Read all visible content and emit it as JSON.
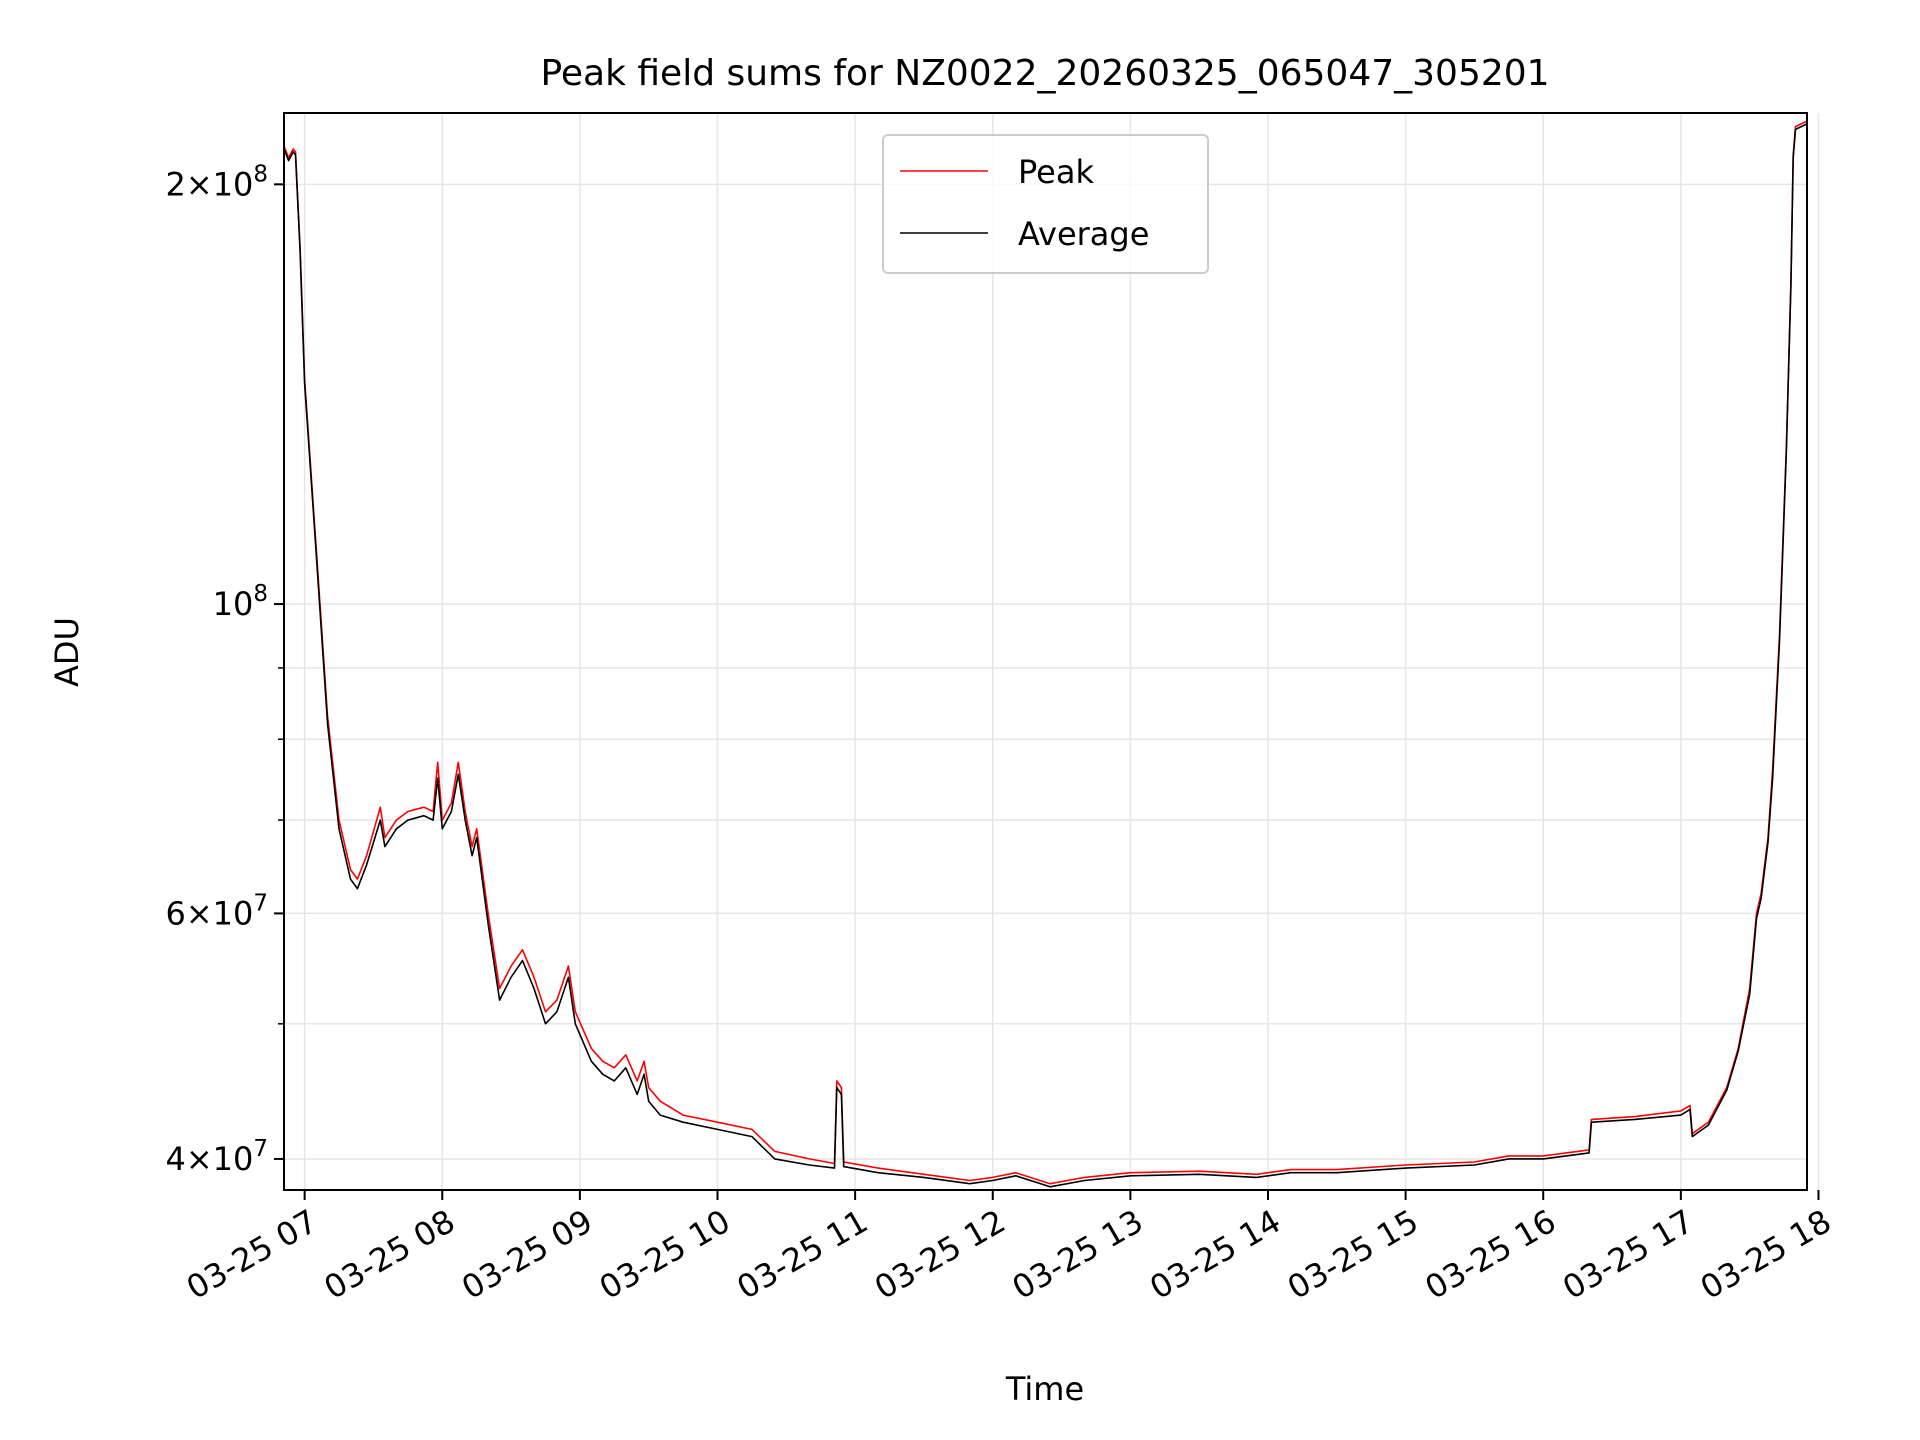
{
  "chart_data": {
    "type": "line",
    "title": "Peak field sums for NZ0022_20260325_065047_305201",
    "xlabel": "Time",
    "ylabel": "ADU",
    "yscale": "log",
    "ylim": [
      38000000,
      225000000
    ],
    "xlim": [
      "03-25 06:51",
      "03-25 17:55"
    ],
    "grid": true,
    "legend_position": "top-center",
    "x_ticks": [
      "03-25 07",
      "03-25 08",
      "03-25 09",
      "03-25 10",
      "03-25 11",
      "03-25 12",
      "03-25 13",
      "03-25 14",
      "03-25 15",
      "03-25 16",
      "03-25 17",
      "03-25 18"
    ],
    "y_ticks": [
      {
        "value": 40000000,
        "mant": "4",
        "exp": "7"
      },
      {
        "value": 60000000,
        "mant": "6",
        "exp": "7"
      },
      {
        "value": 100000000,
        "mant": "",
        "exp": "8"
      },
      {
        "value": 200000000,
        "mant": "2",
        "exp": "8"
      }
    ],
    "series": [
      {
        "name": "Peak",
        "color": "#ff0000",
        "points": [
          [
            "03-25 06:51",
            213000000
          ],
          [
            "03-25 06:53",
            209000000
          ],
          [
            "03-25 06:55",
            212000000
          ],
          [
            "03-25 06:56",
            211000000
          ],
          [
            "03-25 06:58",
            180000000
          ],
          [
            "03-25 07:00",
            145000000
          ],
          [
            "03-25 07:05",
            110000000
          ],
          [
            "03-25 07:10",
            83000000
          ],
          [
            "03-25 07:15",
            70000000
          ],
          [
            "03-25 07:20",
            64500000
          ],
          [
            "03-25 07:23",
            63500000
          ],
          [
            "03-25 07:27",
            66000000
          ],
          [
            "03-25 07:33",
            71500000
          ],
          [
            "03-25 07:35",
            68000000
          ],
          [
            "03-25 07:40",
            70000000
          ],
          [
            "03-25 07:45",
            71000000
          ],
          [
            "03-25 07:52",
            71500000
          ],
          [
            "03-25 07:56",
            71000000
          ],
          [
            "03-25 07:58",
            77000000
          ],
          [
            "03-25 08:00",
            70000000
          ],
          [
            "03-25 08:04",
            72000000
          ],
          [
            "03-25 08:07",
            77000000
          ],
          [
            "03-25 08:10",
            71000000
          ],
          [
            "03-25 08:13",
            67000000
          ],
          [
            "03-25 08:15",
            69000000
          ],
          [
            "03-25 08:20",
            60000000
          ],
          [
            "03-25 08:25",
            53000000
          ],
          [
            "03-25 08:30",
            55000000
          ],
          [
            "03-25 08:35",
            56500000
          ],
          [
            "03-25 08:40",
            54000000
          ],
          [
            "03-25 08:45",
            51000000
          ],
          [
            "03-25 08:50",
            52000000
          ],
          [
            "03-25 08:55",
            55000000
          ],
          [
            "03-25 08:58",
            51000000
          ],
          [
            "03-25 09:05",
            48000000
          ],
          [
            "03-25 09:10",
            47000000
          ],
          [
            "03-25 09:15",
            46500000
          ],
          [
            "03-25 09:20",
            47500000
          ],
          [
            "03-25 09:25",
            45500000
          ],
          [
            "03-25 09:28",
            47000000
          ],
          [
            "03-25 09:30",
            45000000
          ],
          [
            "03-25 09:35",
            44000000
          ],
          [
            "03-25 09:45",
            43000000
          ],
          [
            "03-25 10:00",
            42500000
          ],
          [
            "03-25 10:15",
            42000000
          ],
          [
            "03-25 10:25",
            40500000
          ],
          [
            "03-25 10:40",
            40000000
          ],
          [
            "03-25 10:51",
            39700000
          ],
          [
            "03-25 10:52",
            45500000
          ],
          [
            "03-25 10:54",
            45000000
          ],
          [
            "03-25 10:55",
            39800000
          ],
          [
            "03-25 11:10",
            39400000
          ],
          [
            "03-25 11:30",
            39000000
          ],
          [
            "03-25 11:50",
            38600000
          ],
          [
            "03-25 12:00",
            38800000
          ],
          [
            "03-25 12:10",
            39100000
          ],
          [
            "03-25 12:25",
            38400000
          ],
          [
            "03-25 12:40",
            38800000
          ],
          [
            "03-25 13:00",
            39100000
          ],
          [
            "03-25 13:30",
            39200000
          ],
          [
            "03-25 13:55",
            39000000
          ],
          [
            "03-25 14:10",
            39300000
          ],
          [
            "03-25 14:30",
            39300000
          ],
          [
            "03-25 15:00",
            39600000
          ],
          [
            "03-25 15:30",
            39800000
          ],
          [
            "03-25 15:45",
            40200000
          ],
          [
            "03-25 16:00",
            40200000
          ],
          [
            "03-25 16:20",
            40600000
          ],
          [
            "03-25 16:21",
            42700000
          ],
          [
            "03-25 16:40",
            42900000
          ],
          [
            "03-25 17:00",
            43300000
          ],
          [
            "03-25 17:04",
            43700000
          ],
          [
            "03-25 17:05",
            41700000
          ],
          [
            "03-25 17:12",
            42500000
          ],
          [
            "03-25 17:20",
            45000000
          ],
          [
            "03-25 17:25",
            48000000
          ],
          [
            "03-25 17:30",
            53000000
          ],
          [
            "03-25 17:33",
            60000000
          ],
          [
            "03-25 17:35",
            62000000
          ],
          [
            "03-25 17:38",
            68000000
          ],
          [
            "03-25 17:40",
            76000000
          ],
          [
            "03-25 17:43",
            95000000
          ],
          [
            "03-25 17:46",
            130000000
          ],
          [
            "03-25 17:48",
            170000000
          ],
          [
            "03-25 17:49",
            210000000
          ],
          [
            "03-25 17:50",
            220000000
          ],
          [
            "03-25 17:55",
            222000000
          ]
        ]
      },
      {
        "name": "Average",
        "color": "#000000",
        "points": [
          [
            "03-25 06:51",
            212000000
          ],
          [
            "03-25 06:53",
            208000000
          ],
          [
            "03-25 06:55",
            211000000
          ],
          [
            "03-25 06:56",
            210000000
          ],
          [
            "03-25 06:58",
            179000000
          ],
          [
            "03-25 07:00",
            144000000
          ],
          [
            "03-25 07:05",
            109000000
          ],
          [
            "03-25 07:10",
            82000000
          ],
          [
            "03-25 07:15",
            69000000
          ],
          [
            "03-25 07:20",
            63500000
          ],
          [
            "03-25 07:23",
            62500000
          ],
          [
            "03-25 07:27",
            65000000
          ],
          [
            "03-25 07:33",
            70000000
          ],
          [
            "03-25 07:35",
            67000000
          ],
          [
            "03-25 07:40",
            69000000
          ],
          [
            "03-25 07:45",
            70000000
          ],
          [
            "03-25 07:52",
            70500000
          ],
          [
            "03-25 07:56",
            70000000
          ],
          [
            "03-25 07:58",
            75000000
          ],
          [
            "03-25 08:00",
            69000000
          ],
          [
            "03-25 08:04",
            71000000
          ],
          [
            "03-25 08:07",
            75500000
          ],
          [
            "03-25 08:10",
            70000000
          ],
          [
            "03-25 08:13",
            66000000
          ],
          [
            "03-25 08:15",
            68000000
          ],
          [
            "03-25 08:20",
            59000000
          ],
          [
            "03-25 08:25",
            52000000
          ],
          [
            "03-25 08:30",
            54000000
          ],
          [
            "03-25 08:35",
            55500000
          ],
          [
            "03-25 08:40",
            53000000
          ],
          [
            "03-25 08:45",
            50000000
          ],
          [
            "03-25 08:50",
            51000000
          ],
          [
            "03-25 08:55",
            54000000
          ],
          [
            "03-25 08:58",
            50000000
          ],
          [
            "03-25 09:05",
            47000000
          ],
          [
            "03-25 09:10",
            46000000
          ],
          [
            "03-25 09:15",
            45500000
          ],
          [
            "03-25 09:20",
            46500000
          ],
          [
            "03-25 09:25",
            44500000
          ],
          [
            "03-25 09:28",
            46000000
          ],
          [
            "03-25 09:30",
            44000000
          ],
          [
            "03-25 09:35",
            43000000
          ],
          [
            "03-25 09:45",
            42500000
          ],
          [
            "03-25 10:00",
            42000000
          ],
          [
            "03-25 10:15",
            41500000
          ],
          [
            "03-25 10:25",
            40000000
          ],
          [
            "03-25 10:40",
            39600000
          ],
          [
            "03-25 10:51",
            39400000
          ],
          [
            "03-25 10:52",
            45000000
          ],
          [
            "03-25 10:54",
            44500000
          ],
          [
            "03-25 10:55",
            39500000
          ],
          [
            "03-25 11:10",
            39100000
          ],
          [
            "03-25 11:30",
            38800000
          ],
          [
            "03-25 11:50",
            38400000
          ],
          [
            "03-25 12:00",
            38600000
          ],
          [
            "03-25 12:10",
            38900000
          ],
          [
            "03-25 12:25",
            38200000
          ],
          [
            "03-25 12:40",
            38600000
          ],
          [
            "03-25 13:00",
            38900000
          ],
          [
            "03-25 13:30",
            39000000
          ],
          [
            "03-25 13:55",
            38800000
          ],
          [
            "03-25 14:10",
            39100000
          ],
          [
            "03-25 14:30",
            39100000
          ],
          [
            "03-25 15:00",
            39400000
          ],
          [
            "03-25 15:30",
            39600000
          ],
          [
            "03-25 15:45",
            40000000
          ],
          [
            "03-25 16:00",
            40000000
          ],
          [
            "03-25 16:20",
            40400000
          ],
          [
            "03-25 16:21",
            42500000
          ],
          [
            "03-25 16:40",
            42700000
          ],
          [
            "03-25 17:00",
            43000000
          ],
          [
            "03-25 17:04",
            43400000
          ],
          [
            "03-25 17:05",
            41500000
          ],
          [
            "03-25 17:12",
            42300000
          ],
          [
            "03-25 17:20",
            44800000
          ],
          [
            "03-25 17:25",
            47800000
          ],
          [
            "03-25 17:30",
            52500000
          ],
          [
            "03-25 17:33",
            59500000
          ],
          [
            "03-25 17:35",
            61500000
          ],
          [
            "03-25 17:38",
            67500000
          ],
          [
            "03-25 17:40",
            75000000
          ],
          [
            "03-25 17:43",
            94000000
          ],
          [
            "03-25 17:46",
            129000000
          ],
          [
            "03-25 17:48",
            169000000
          ],
          [
            "03-25 17:49",
            209000000
          ],
          [
            "03-25 17:50",
            219000000
          ],
          [
            "03-25 17:55",
            221000000
          ]
        ]
      }
    ]
  }
}
